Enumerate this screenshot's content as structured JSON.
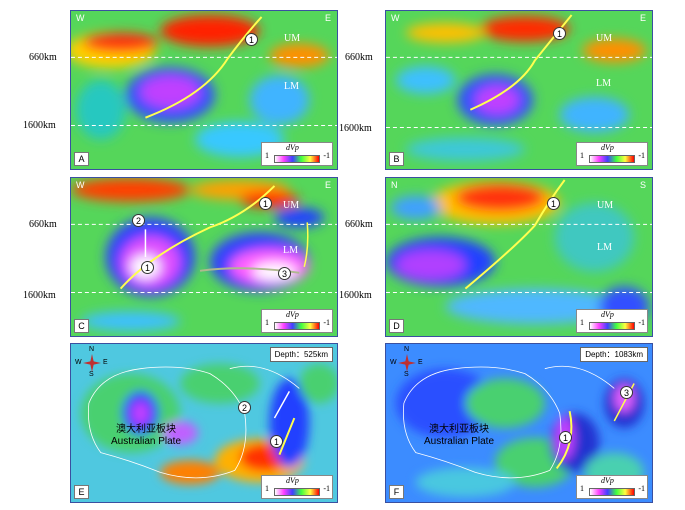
{
  "depth_labels": {
    "upper": "660km",
    "lower": "1600km"
  },
  "panels": {
    "A": {
      "letter": "A",
      "dir_left": "W",
      "dir_right": "E",
      "um": "UM",
      "lm": "LM",
      "markers": [
        "1"
      ]
    },
    "B": {
      "letter": "B",
      "dir_left": "W",
      "dir_right": "E",
      "um": "UM",
      "lm": "LM",
      "markers": [
        "1"
      ]
    },
    "C": {
      "letter": "C",
      "dir_left": "W",
      "dir_right": "E",
      "um": "UM",
      "lm": "LM",
      "markers": [
        "1",
        "2",
        "1",
        "3"
      ]
    },
    "D": {
      "letter": "D",
      "dir_left": "N",
      "dir_right": "S",
      "um": "UM",
      "lm": "LM",
      "markers": [
        "1"
      ]
    },
    "E": {
      "letter": "E",
      "depth": "Depth：525km",
      "plate_cn": "澳大利亚板块",
      "plate_en": "Australian Plate",
      "markers": [
        "2",
        "1"
      ],
      "compass": {
        "n": "N",
        "s": "S",
        "w": "W",
        "e": "E"
      }
    },
    "F": {
      "letter": "F",
      "depth": "Depth：1083km",
      "plate_cn": "澳大利亚板块",
      "plate_en": "Australian Plate",
      "markers": [
        "1",
        "3"
      ],
      "compass": {
        "n": "N",
        "s": "S",
        "w": "W",
        "e": "E"
      }
    }
  },
  "legend": {
    "title": "dVp",
    "low": "1",
    "high": "-1"
  },
  "colors": {
    "hot": "#ff2a00",
    "warm": "#ffb000",
    "neutral": "#4fd44f",
    "cool": "#2a6cff",
    "cold": "#ff40ff",
    "slab": "#ffff40"
  }
}
